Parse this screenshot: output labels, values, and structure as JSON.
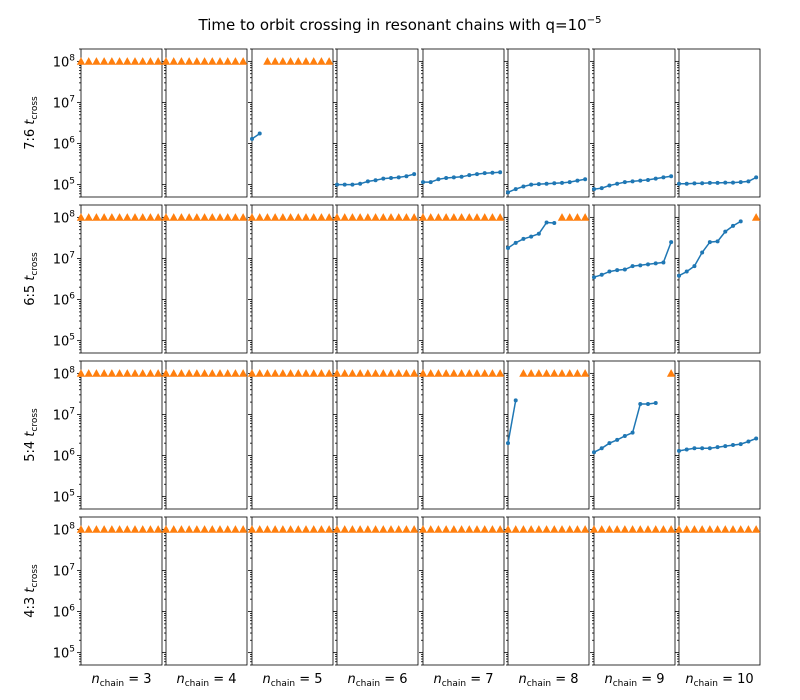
{
  "title": {
    "main": "Time to orbit crossing in resonant chains with q=10",
    "exp": "−5"
  },
  "ylabel": "t",
  "ylabel_sub": "cross",
  "xlabel_prefix": "n",
  "xlabel_sub": "chain",
  "yticks": [
    {
      "value": 100000,
      "base": "10",
      "exp": "5"
    },
    {
      "value": 1000000,
      "base": "10",
      "exp": "6"
    },
    {
      "value": 10000000,
      "base": "10",
      "exp": "7"
    },
    {
      "value": 100000000,
      "base": "10",
      "exp": "8"
    }
  ],
  "colors": {
    "crossing": "#1f77b4",
    "no_crossing": "#ff7f0e"
  },
  "chart_data": {
    "type": "scatter",
    "yscale": "log",
    "ylim": [
      50000,
      200000000
    ],
    "xlim": [
      0,
      10.5
    ],
    "rows": [
      "7:6",
      "6:5",
      "5:4",
      "4:3"
    ],
    "cols": [
      {
        "value": 3,
        "label": "= 3"
      },
      {
        "value": 4,
        "label": "= 4"
      },
      {
        "value": 5,
        "label": "= 5"
      },
      {
        "value": 6,
        "label": "= 6"
      },
      {
        "value": 7,
        "label": "= 7"
      },
      {
        "value": 8,
        "label": "= 8"
      },
      {
        "value": 9,
        "label": "= 9"
      },
      {
        "value": 10,
        "label": "= 10"
      }
    ],
    "panels": [
      [
        {
          "lines": [],
          "markers": [
            0,
            1,
            2,
            3,
            4,
            5,
            6,
            7,
            8,
            9,
            10
          ]
        },
        {
          "lines": [],
          "markers": [
            0,
            1,
            2,
            3,
            4,
            5,
            6,
            7,
            8,
            9,
            10
          ]
        },
        {
          "lines": [
            [
              0,
              1300000
            ],
            [
              1,
              1750000
            ]
          ],
          "markers": [
            2,
            3,
            4,
            5,
            6,
            7,
            8,
            9,
            10
          ]
        },
        {
          "lines": [
            [
              0,
              100000
            ],
            [
              1,
              100000
            ],
            [
              2,
              100000
            ],
            [
              3,
              105000
            ],
            [
              4,
              120000
            ],
            [
              5,
              128000
            ],
            [
              6,
              140000
            ],
            [
              7,
              145000
            ],
            [
              8,
              150000
            ],
            [
              9,
              160000
            ],
            [
              10,
              180000
            ]
          ],
          "markers": []
        },
        {
          "lines": [
            [
              0,
              115000
            ],
            [
              1,
              115000
            ],
            [
              2,
              135000
            ],
            [
              3,
              145000
            ],
            [
              4,
              150000
            ],
            [
              5,
              155000
            ],
            [
              6,
              170000
            ],
            [
              7,
              180000
            ],
            [
              8,
              190000
            ],
            [
              9,
              195000
            ],
            [
              10,
              200000
            ]
          ],
          "markers": []
        },
        {
          "lines": [
            [
              0,
              65000
            ],
            [
              1,
              78000
            ],
            [
              2,
              90000
            ],
            [
              3,
              100000
            ],
            [
              4,
              103000
            ],
            [
              5,
              105000
            ],
            [
              6,
              108000
            ],
            [
              7,
              110000
            ],
            [
              8,
              115000
            ],
            [
              9,
              125000
            ],
            [
              10,
              135000
            ]
          ],
          "markers": []
        },
        {
          "lines": [
            [
              0,
              78000
            ],
            [
              1,
              82000
            ],
            [
              2,
              95000
            ],
            [
              3,
              105000
            ],
            [
              4,
              115000
            ],
            [
              5,
              120000
            ],
            [
              6,
              125000
            ],
            [
              7,
              130000
            ],
            [
              8,
              140000
            ],
            [
              9,
              150000
            ],
            [
              10,
              160000
            ]
          ],
          "markers": []
        },
        {
          "lines": [
            [
              0,
              105000
            ],
            [
              1,
              105000
            ],
            [
              2,
              107000
            ],
            [
              3,
              108000
            ],
            [
              4,
              110000
            ],
            [
              5,
              110000
            ],
            [
              6,
              112000
            ],
            [
              7,
              112000
            ],
            [
              8,
              115000
            ],
            [
              9,
              120000
            ],
            [
              10,
              150000
            ]
          ],
          "markers": []
        }
      ],
      [
        {
          "lines": [],
          "markers": [
            0,
            1,
            2,
            3,
            4,
            5,
            6,
            7,
            8,
            9,
            10
          ]
        },
        {
          "lines": [],
          "markers": [
            0,
            1,
            2,
            3,
            4,
            5,
            6,
            7,
            8,
            9,
            10
          ]
        },
        {
          "lines": [],
          "markers": [
            0,
            1,
            2,
            3,
            4,
            5,
            6,
            7,
            8,
            9,
            10
          ]
        },
        {
          "lines": [],
          "markers": [
            0,
            1,
            2,
            3,
            4,
            5,
            6,
            7,
            8,
            9,
            10
          ]
        },
        {
          "lines": [],
          "markers": [
            0,
            1,
            2,
            3,
            4,
            5,
            6,
            7,
            8,
            9,
            10
          ]
        },
        {
          "lines": [
            [
              0,
              18000000
            ],
            [
              1,
              24000000
            ],
            [
              2,
              30000000
            ],
            [
              3,
              34000000
            ],
            [
              4,
              40000000
            ],
            [
              5,
              75000000
            ],
            [
              6,
              73000000
            ]
          ],
          "markers": [
            7,
            8,
            9,
            10
          ]
        },
        {
          "lines": [
            [
              0,
              3500000
            ],
            [
              1,
              4000000
            ],
            [
              2,
              4800000
            ],
            [
              3,
              5200000
            ],
            [
              4,
              5400000
            ],
            [
              5,
              6500000
            ],
            [
              6,
              6800000
            ],
            [
              7,
              7200000
            ],
            [
              8,
              7600000
            ],
            [
              9,
              8000000
            ],
            [
              10,
              25000000
            ]
          ],
          "markers": []
        },
        {
          "lines": [
            [
              0,
              3800000
            ],
            [
              1,
              4800000
            ],
            [
              2,
              6500000
            ],
            [
              3,
              14000000
            ],
            [
              4,
              25000000
            ],
            [
              5,
              26000000
            ],
            [
              6,
              45000000
            ],
            [
              7,
              62000000
            ],
            [
              8,
              80000000
            ]
          ],
          "markers": [
            10
          ]
        }
      ],
      [
        {
          "lines": [],
          "markers": [
            0,
            1,
            2,
            3,
            4,
            5,
            6,
            7,
            8,
            9,
            10
          ]
        },
        {
          "lines": [],
          "markers": [
            0,
            1,
            2,
            3,
            4,
            5,
            6,
            7,
            8,
            9,
            10
          ]
        },
        {
          "lines": [],
          "markers": [
            0,
            1,
            2,
            3,
            4,
            5,
            6,
            7,
            8,
            9,
            10
          ]
        },
        {
          "lines": [],
          "markers": [
            0,
            1,
            2,
            3,
            4,
            5,
            6,
            7,
            8,
            9,
            10
          ]
        },
        {
          "lines": [],
          "markers": [
            0,
            1,
            2,
            3,
            4,
            5,
            6,
            7,
            8,
            9,
            10
          ]
        },
        {
          "lines": [
            [
              0,
              2000000
            ],
            [
              1,
              22000000
            ]
          ],
          "markers": [
            2,
            3,
            4,
            5,
            6,
            7,
            8,
            9,
            10
          ]
        },
        {
          "lines": [
            [
              0,
              1200000
            ],
            [
              1,
              1500000
            ],
            [
              2,
              2000000
            ],
            [
              3,
              2400000
            ],
            [
              4,
              3000000
            ],
            [
              5,
              3600000
            ],
            [
              6,
              18000000
            ],
            [
              7,
              18000000
            ],
            [
              8,
              19000000
            ]
          ],
          "markers": [
            10
          ]
        },
        {
          "lines": [
            [
              0,
              1300000
            ],
            [
              1,
              1400000
            ],
            [
              2,
              1500000
            ],
            [
              3,
              1500000
            ],
            [
              4,
              1500000
            ],
            [
              5,
              1600000
            ],
            [
              6,
              1700000
            ],
            [
              7,
              1800000
            ],
            [
              8,
              1900000
            ],
            [
              9,
              2200000
            ],
            [
              10,
              2600000
            ]
          ],
          "markers": []
        }
      ],
      [
        {
          "lines": [],
          "markers": [
            0,
            1,
            2,
            3,
            4,
            5,
            6,
            7,
            8,
            9,
            10
          ]
        },
        {
          "lines": [],
          "markers": [
            0,
            1,
            2,
            3,
            4,
            5,
            6,
            7,
            8,
            9,
            10
          ]
        },
        {
          "lines": [],
          "markers": [
            0,
            1,
            2,
            3,
            4,
            5,
            6,
            7,
            8,
            9,
            10
          ]
        },
        {
          "lines": [],
          "markers": [
            0,
            1,
            2,
            3,
            4,
            5,
            6,
            7,
            8,
            9,
            10
          ]
        },
        {
          "lines": [],
          "markers": [
            0,
            1,
            2,
            3,
            4,
            5,
            6,
            7,
            8,
            9,
            10
          ]
        },
        {
          "lines": [],
          "markers": [
            0,
            1,
            2,
            3,
            4,
            5,
            6,
            7,
            8,
            9,
            10
          ]
        },
        {
          "lines": [],
          "markers": [
            0,
            1,
            2,
            3,
            4,
            5,
            6,
            7,
            8,
            9,
            10
          ]
        },
        {
          "lines": [],
          "markers": [
            0,
            1,
            2,
            3,
            4,
            5,
            6,
            7,
            8,
            9,
            10
          ]
        }
      ]
    ],
    "marker_value": 100000000
  }
}
